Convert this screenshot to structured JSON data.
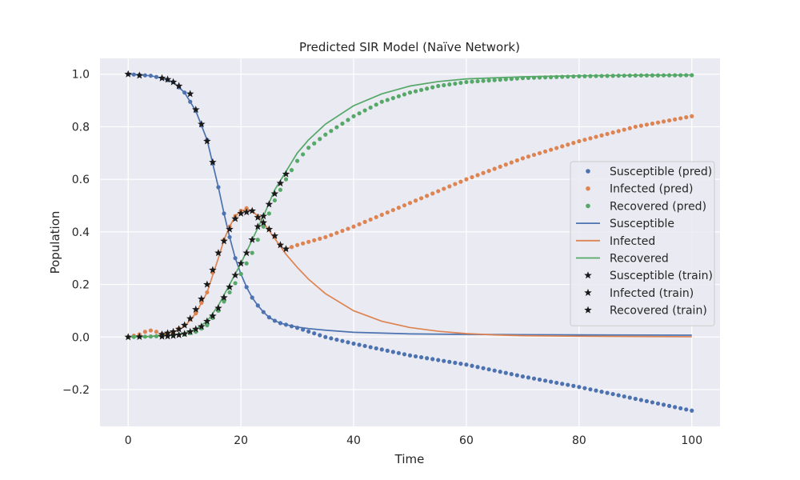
{
  "chart_data": {
    "type": "line",
    "title": "Predicted SIR Model (Naïve Network)",
    "xlabel": "Time",
    "ylabel": "Population",
    "xlim": [
      -5,
      105
    ],
    "ylim": [
      -0.34,
      1.06
    ],
    "xticks": [
      0,
      20,
      40,
      60,
      80,
      100
    ],
    "xtick_labels": [
      "0",
      "20",
      "40",
      "60",
      "80",
      "100"
    ],
    "yticks": [
      -0.2,
      0.0,
      0.2,
      0.4,
      0.6,
      0.8,
      1.0
    ],
    "ytick_labels": [
      "−0.2",
      "0.0",
      "0.2",
      "0.4",
      "0.6",
      "0.8",
      "1.0"
    ],
    "grid": true,
    "legend_position": "center-right",
    "colors": {
      "susceptible": "#4c72b0",
      "infected": "#dd8452",
      "recovered": "#55a868",
      "train": "#1a1a1a",
      "plot_bg": "#eaeaf2",
      "grid": "#ffffff"
    },
    "legend": [
      {
        "label": "Susceptible (pred)",
        "kind": "dot",
        "color": "#4c72b0"
      },
      {
        "label": "Infected (pred)",
        "kind": "dot",
        "color": "#dd8452"
      },
      {
        "label": "Recovered (pred)",
        "kind": "dot",
        "color": "#55a868"
      },
      {
        "label": "Susceptible",
        "kind": "line",
        "color": "#4c72b0"
      },
      {
        "label": "Infected",
        "kind": "line",
        "color": "#dd8452"
      },
      {
        "label": "Recovered",
        "kind": "line",
        "color": "#55a868"
      },
      {
        "label": "Susceptible (train)",
        "kind": "star",
        "color": "#1a1a1a"
      },
      {
        "label": "Infected (train)",
        "kind": "star",
        "color": "#1a1a1a"
      },
      {
        "label": "Recovered (train)",
        "kind": "star",
        "color": "#1a1a1a"
      }
    ],
    "true_model": {
      "susceptible": {
        "x": [
          0,
          2,
          4,
          6,
          8,
          10,
          12,
          14,
          16,
          17,
          18,
          19,
          20,
          21,
          22,
          23,
          24,
          25,
          26,
          27,
          28,
          30,
          32,
          35,
          40,
          50,
          60,
          70,
          80,
          100
        ],
        "y": [
          1.0,
          0.997,
          0.994,
          0.985,
          0.97,
          0.93,
          0.86,
          0.75,
          0.57,
          0.47,
          0.38,
          0.3,
          0.24,
          0.19,
          0.15,
          0.12,
          0.095,
          0.075,
          0.062,
          0.053,
          0.047,
          0.038,
          0.032,
          0.026,
          0.018,
          0.012,
          0.01,
          0.009,
          0.008,
          0.007
        ]
      },
      "infected": {
        "x": [
          0,
          2,
          4,
          6,
          8,
          10,
          12,
          14,
          16,
          17,
          18,
          19,
          20,
          21,
          22,
          23,
          24,
          25,
          26,
          27,
          28,
          30,
          32,
          35,
          40,
          45,
          50,
          55,
          60,
          65,
          70,
          80,
          90,
          100
        ],
        "y": [
          0.0,
          0.001,
          0.003,
          0.008,
          0.018,
          0.04,
          0.09,
          0.17,
          0.3,
          0.37,
          0.42,
          0.46,
          0.48,
          0.485,
          0.48,
          0.46,
          0.435,
          0.405,
          0.375,
          0.345,
          0.315,
          0.265,
          0.22,
          0.165,
          0.1,
          0.06,
          0.036,
          0.022,
          0.013,
          0.008,
          0.005,
          0.003,
          0.002,
          0.001
        ]
      },
      "recovered": {
        "x": [
          0,
          4,
          8,
          10,
          12,
          14,
          16,
          18,
          20,
          22,
          24,
          26,
          28,
          30,
          32,
          35,
          40,
          45,
          50,
          55,
          60,
          70,
          80,
          90,
          100
        ],
        "y": [
          0.0,
          0.002,
          0.008,
          0.015,
          0.03,
          0.06,
          0.12,
          0.2,
          0.28,
          0.37,
          0.46,
          0.56,
          0.63,
          0.7,
          0.75,
          0.81,
          0.88,
          0.925,
          0.955,
          0.972,
          0.982,
          0.99,
          0.994,
          0.996,
          0.997
        ]
      }
    },
    "predicted": {
      "x_start": 0,
      "x_end": 100,
      "x_step": 1,
      "susceptible": {
        "breakpoints_x": [
          0,
          2,
          4,
          6,
          8,
          10,
          12,
          14,
          16,
          17,
          18,
          19,
          20,
          21,
          22,
          23,
          24,
          25,
          26,
          27,
          28,
          30,
          35,
          40,
          50,
          60,
          70,
          80,
          90,
          100
        ],
        "breakpoints_y": [
          1.0,
          0.997,
          0.994,
          0.985,
          0.97,
          0.93,
          0.86,
          0.75,
          0.57,
          0.47,
          0.38,
          0.3,
          0.24,
          0.19,
          0.15,
          0.12,
          0.095,
          0.075,
          0.062,
          0.053,
          0.047,
          0.035,
          0.0,
          -0.025,
          -0.07,
          -0.105,
          -0.15,
          -0.19,
          -0.235,
          -0.28
        ]
      },
      "infected": {
        "breakpoints_x": [
          0,
          1,
          2,
          3,
          4,
          5,
          6,
          7,
          8,
          10,
          12,
          14,
          16,
          17,
          18,
          19,
          20,
          21,
          22,
          23,
          24,
          25,
          26,
          27,
          28,
          30,
          35,
          40,
          50,
          60,
          70,
          80,
          90,
          100
        ],
        "breakpoints_y": [
          0.0,
          0.005,
          0.01,
          0.02,
          0.025,
          0.02,
          0.012,
          0.015,
          0.02,
          0.045,
          0.09,
          0.17,
          0.32,
          0.37,
          0.42,
          0.46,
          0.48,
          0.49,
          0.48,
          0.46,
          0.435,
          0.41,
          0.38,
          0.35,
          0.335,
          0.35,
          0.38,
          0.42,
          0.51,
          0.6,
          0.68,
          0.745,
          0.8,
          0.84
        ]
      },
      "recovered": {
        "breakpoints_x": [
          0,
          4,
          8,
          10,
          12,
          14,
          16,
          18,
          20,
          22,
          24,
          26,
          28,
          30,
          32,
          35,
          40,
          45,
          50,
          55,
          60,
          70,
          80,
          90,
          100
        ],
        "breakpoints_y": [
          0.0,
          0.002,
          0.006,
          0.01,
          0.02,
          0.045,
          0.1,
          0.17,
          0.24,
          0.32,
          0.42,
          0.52,
          0.6,
          0.67,
          0.72,
          0.77,
          0.84,
          0.895,
          0.93,
          0.955,
          0.97,
          0.985,
          0.992,
          0.995,
          0.996
        ]
      }
    },
    "train": {
      "susceptible": {
        "x": [
          0,
          2,
          6,
          7,
          8,
          9,
          11,
          12,
          13,
          14,
          15
        ],
        "y": [
          1.0,
          0.995,
          0.985,
          0.98,
          0.97,
          0.955,
          0.925,
          0.865,
          0.81,
          0.745,
          0.665
        ]
      },
      "infected": {
        "x": [
          6,
          7,
          8,
          9,
          10,
          11,
          12,
          13,
          14,
          15,
          16,
          17,
          18,
          19,
          20,
          21,
          22,
          23,
          24,
          25,
          26,
          27,
          28
        ],
        "y": [
          0.01,
          0.015,
          0.02,
          0.03,
          0.045,
          0.07,
          0.105,
          0.145,
          0.2,
          0.255,
          0.32,
          0.365,
          0.41,
          0.45,
          0.47,
          0.475,
          0.48,
          0.455,
          0.435,
          0.41,
          0.385,
          0.35,
          0.335
        ]
      },
      "recovered": {
        "x": [
          0,
          2,
          6,
          7,
          8,
          9,
          10,
          11,
          12,
          13,
          14,
          15,
          16,
          17,
          18,
          19,
          20,
          21,
          22,
          23,
          24,
          25,
          26,
          27,
          28
        ],
        "y": [
          0.0,
          0.001,
          0.002,
          0.003,
          0.005,
          0.008,
          0.012,
          0.02,
          0.03,
          0.04,
          0.06,
          0.08,
          0.11,
          0.15,
          0.19,
          0.235,
          0.28,
          0.32,
          0.37,
          0.42,
          0.46,
          0.505,
          0.545,
          0.585,
          0.62
        ]
      }
    }
  }
}
